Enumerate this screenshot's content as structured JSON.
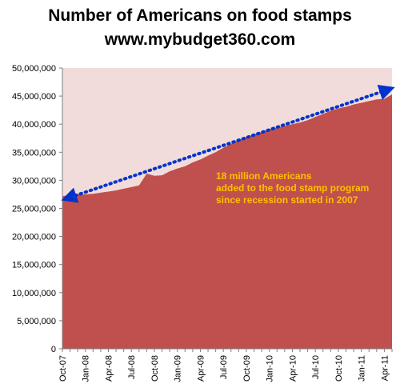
{
  "chart_data": {
    "type": "area",
    "title": "Number of Americans on food stamps",
    "subtitle": "www.mybudget360.com",
    "x": [
      "Oct-07",
      "Nov-07",
      "Dec-07",
      "Jan-08",
      "Feb-08",
      "Mar-08",
      "Apr-08",
      "May-08",
      "Jun-08",
      "Jul-08",
      "Aug-08",
      "Sep-08",
      "Oct-08",
      "Nov-08",
      "Dec-08",
      "Jan-09",
      "Feb-09",
      "Mar-09",
      "Apr-09",
      "May-09",
      "Jun-09",
      "Jul-09",
      "Aug-09",
      "Sep-09",
      "Oct-09",
      "Nov-09",
      "Dec-09",
      "Jan-10",
      "Feb-10",
      "Mar-10",
      "Apr-10",
      "May-10",
      "Jun-10",
      "Jul-10",
      "Aug-10",
      "Sep-10",
      "Oct-10",
      "Nov-10",
      "Dec-10",
      "Jan-11",
      "Feb-11",
      "Mar-11",
      "Apr-11",
      "May-11"
    ],
    "series": [
      {
        "values": [
          27200000,
          27300000,
          27500000,
          27500000,
          27600000,
          27800000,
          28000000,
          28200000,
          28500000,
          28800000,
          29100000,
          31200000,
          30800000,
          30900000,
          31600000,
          32100000,
          32500000,
          33200000,
          33700000,
          34400000,
          35000000,
          35800000,
          36500000,
          37200000,
          37700000,
          38200000,
          38600000,
          39100000,
          39400000,
          39700000,
          40000000,
          40300000,
          40700000,
          41300000,
          41800000,
          42400000,
          42800000,
          43100000,
          43500000,
          43800000,
          44100000,
          44400000,
          44500000,
          45300000
        ],
        "color": "#c0504d"
      }
    ],
    "xticks": [
      "Oct-07",
      "Jan-08",
      "Apr-08",
      "Jul-08",
      "Oct-08",
      "Jan-09",
      "Apr-09",
      "Jul-09",
      "Oct-09",
      "Jan-10",
      "Apr-10",
      "Jul-10",
      "Oct-10",
      "Jan-11",
      "Apr-11"
    ],
    "yticks": [
      "0",
      "5,000,000",
      "10,000,000",
      "15,000,000",
      "20,000,000",
      "25,000,000",
      "30,000,000",
      "35,000,000",
      "40,000,000",
      "45,000,000",
      "50,000,000"
    ],
    "ylim": [
      0,
      50000000
    ],
    "xlabel": "",
    "ylabel": "",
    "grid": false,
    "legend": "none",
    "plot_background": "#f2dcdb",
    "annotation": {
      "lines": [
        "18 million Americans",
        "added to the food stamp program",
        "since recession started in 2007"
      ],
      "color": "#ffc000"
    },
    "trend_arrow": {
      "from": {
        "x": "Oct-07",
        "y": 26700000
      },
      "to": {
        "x": "May-11",
        "y": 46300000
      },
      "color": "#0033cc",
      "style": "dotted, double-headed"
    }
  }
}
